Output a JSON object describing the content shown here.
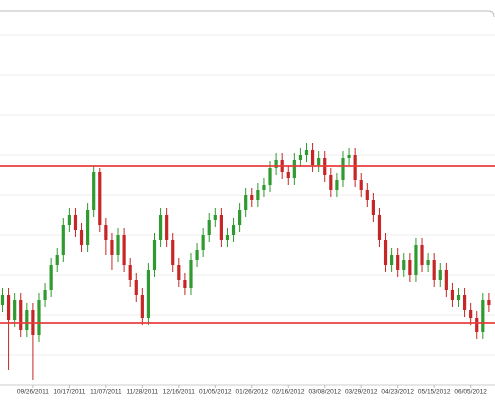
{
  "chart_data": {
    "type": "candlestick",
    "categories": [
      null,
      null,
      null,
      null,
      null,
      "09/26/2011",
      null,
      null,
      null,
      null,
      null,
      "10/17/2011",
      null,
      null,
      null,
      null,
      null,
      "11/07/2011",
      null,
      null,
      null,
      null,
      null,
      "11/28/2011",
      null,
      null,
      null,
      null,
      null,
      "12/16/2011",
      null,
      null,
      null,
      null,
      null,
      "01/05/2012",
      null,
      null,
      null,
      null,
      null,
      "01/26/2012",
      null,
      null,
      null,
      null,
      null,
      "02/16/2012",
      null,
      null,
      null,
      null,
      null,
      "03/08/2012",
      null,
      null,
      null,
      null,
      null,
      "03/29/2012",
      null,
      null,
      null,
      null,
      null,
      "04/23/2012",
      null,
      null,
      null,
      null,
      null,
      "05/15/2012",
      null,
      null,
      null,
      null,
      null,
      "06/05/2012",
      null,
      null,
      null
    ],
    "open": [
      80,
      90,
      65,
      85,
      55,
      75,
      50,
      85,
      95,
      120,
      130,
      160,
      170,
      155,
      140,
      175,
      213,
      160,
      145,
      130,
      150,
      120,
      105,
      90,
      67,
      115,
      145,
      170,
      145,
      120,
      105,
      97,
      125,
      135,
      150,
      165,
      170,
      145,
      150,
      160,
      175,
      190,
      185,
      195,
      200,
      217,
      225,
      213,
      207,
      225,
      230,
      235,
      220,
      227,
      210,
      195,
      205,
      227,
      230,
      205,
      195,
      185,
      170,
      145,
      120,
      130,
      115,
      125,
      110,
      140,
      120,
      125,
      105,
      115,
      95,
      85,
      90,
      75,
      67,
      53,
      85
    ],
    "high": [
      97,
      97,
      92,
      92,
      82,
      82,
      92,
      102,
      127,
      137,
      167,
      177,
      177,
      162,
      182,
      220,
      217,
      167,
      152,
      157,
      157,
      127,
      112,
      97,
      122,
      152,
      177,
      177,
      152,
      127,
      112,
      132,
      142,
      157,
      172,
      177,
      177,
      157,
      167,
      182,
      197,
      197,
      202,
      207,
      224,
      232,
      232,
      220,
      232,
      237,
      242,
      242,
      234,
      234,
      217,
      212,
      234,
      237,
      237,
      212,
      202,
      192,
      177,
      152,
      137,
      137,
      132,
      132,
      147,
      147,
      132,
      132,
      122,
      122,
      102,
      97,
      97,
      82,
      74,
      92,
      92
    ],
    "low": [
      73,
      15,
      58,
      48,
      48,
      5,
      43,
      78,
      88,
      113,
      123,
      153,
      148,
      133,
      133,
      168,
      153,
      130,
      115,
      123,
      113,
      98,
      83,
      60,
      60,
      108,
      138,
      138,
      113,
      98,
      90,
      90,
      118,
      128,
      143,
      158,
      138,
      138,
      143,
      153,
      168,
      178,
      178,
      188,
      193,
      210,
      206,
      200,
      200,
      218,
      223,
      213,
      213,
      203,
      188,
      188,
      198,
      220,
      198,
      188,
      178,
      163,
      138,
      113,
      113,
      108,
      108,
      103,
      103,
      113,
      113,
      98,
      98,
      88,
      78,
      78,
      68,
      60,
      46,
      46,
      73
    ],
    "close": [
      90,
      65,
      85,
      55,
      75,
      50,
      85,
      95,
      120,
      130,
      160,
      170,
      155,
      140,
      175,
      213,
      160,
      145,
      130,
      150,
      120,
      105,
      90,
      67,
      115,
      145,
      170,
      145,
      120,
      105,
      97,
      125,
      135,
      150,
      165,
      170,
      145,
      150,
      160,
      175,
      190,
      185,
      195,
      200,
      217,
      225,
      213,
      207,
      225,
      230,
      235,
      220,
      227,
      210,
      195,
      205,
      227,
      230,
      205,
      195,
      185,
      170,
      145,
      120,
      130,
      115,
      125,
      110,
      140,
      120,
      125,
      105,
      115,
      95,
      85,
      90,
      75,
      67,
      53,
      85,
      80
    ],
    "up_color": "#2f9a2f",
    "down_color": "#c62626",
    "ylim": [
      0,
      373
    ],
    "yticks": [
      30,
      70,
      110,
      150,
      190,
      230,
      270,
      310,
      350
    ],
    "grid": true,
    "hlines": [
      219,
      62
    ],
    "hline_color": "#e83a3a"
  }
}
